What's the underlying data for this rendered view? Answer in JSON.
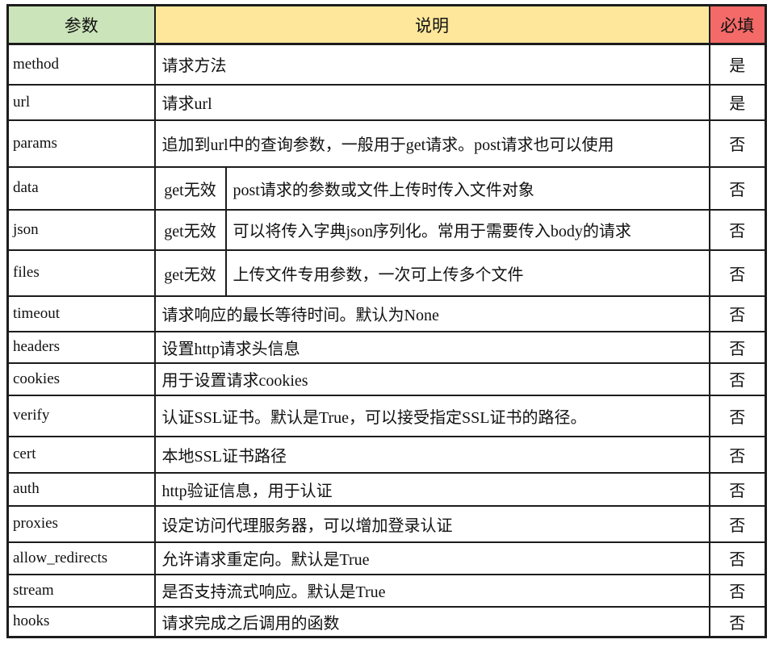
{
  "table": {
    "columns": [
      {
        "label": "参数",
        "bg": "#cce4ba"
      },
      {
        "label": "说明",
        "bg": "#fee79b"
      },
      {
        "label": "必填",
        "bg": "#f46a68"
      }
    ],
    "rows": [
      {
        "param": "method",
        "desc": "请求方法",
        "required": "是"
      },
      {
        "param": "url",
        "desc": "请求url",
        "required": "是"
      },
      {
        "param": "params",
        "desc": "追加到url中的查询参数，一般用于get请求。post请求也可以使用",
        "required": "否"
      },
      {
        "param": "data",
        "note": "get无效",
        "desc": "post请求的参数或文件上传时传入文件对象",
        "required": "否"
      },
      {
        "param": "json",
        "note": "get无效",
        "desc": "可以将传入字典json序列化。常用于需要传入body的请求",
        "required": "否"
      },
      {
        "param": "files",
        "note": "get无效",
        "desc": "上传文件专用参数，一次可上传多个文件",
        "required": "否"
      },
      {
        "param": "timeout",
        "desc": "请求响应的最长等待时间。默认为None",
        "required": "否"
      },
      {
        "param": "headers",
        "desc": "设置http请求头信息",
        "required": "否"
      },
      {
        "param": "cookies",
        "desc": "用于设置请求cookies",
        "required": "否"
      },
      {
        "param": "verify",
        "desc": "认证SSL证书。默认是True，可以接受指定SSL证书的路径。",
        "required": "否"
      },
      {
        "param": "cert",
        "desc": "本地SSL证书路径",
        "required": "否"
      },
      {
        "param": "auth",
        "desc": "http验证信息，用于认证",
        "required": "否"
      },
      {
        "param": "proxies",
        "desc": "设定访问代理服务器，可以增加登录认证",
        "required": "否"
      },
      {
        "param": "allow_redirects",
        "desc": "允许请求重定向。默认是True",
        "required": "否"
      },
      {
        "param": "stream",
        "desc": "是否支持流式响应。默认是True",
        "required": "否"
      },
      {
        "param": "hooks",
        "desc": "请求完成之后调用的函数",
        "required": "否"
      }
    ]
  }
}
